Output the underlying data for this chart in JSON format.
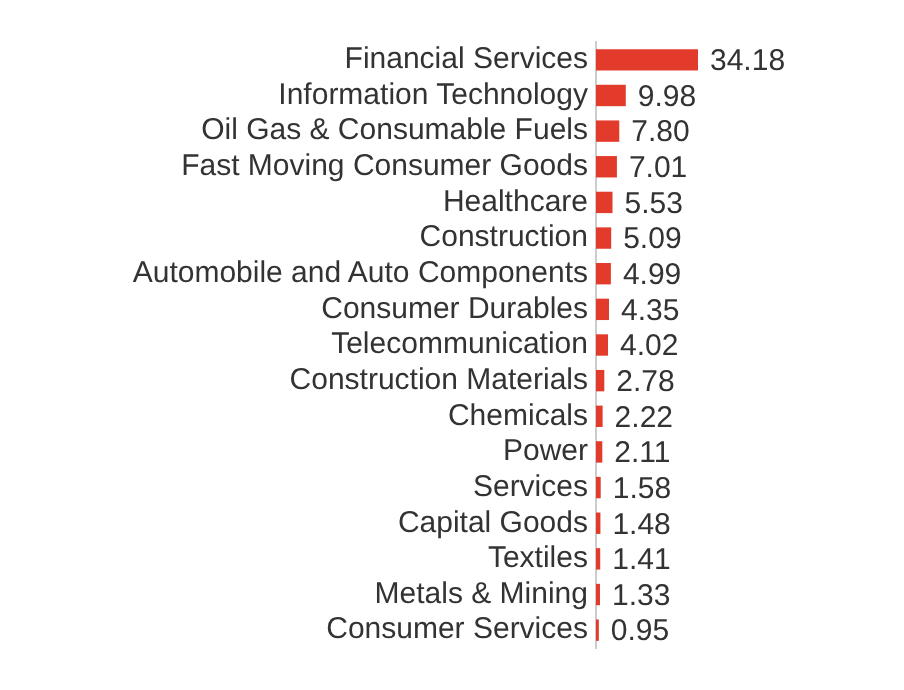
{
  "chart_data": {
    "type": "bar",
    "orientation": "horizontal",
    "categories": [
      "Financial Services",
      "Information Technology",
      "Oil Gas & Consumable Fuels",
      "Fast Moving Consumer Goods",
      "Healthcare",
      "Construction",
      "Automobile and Auto Components",
      "Consumer Durables",
      "Telecommunication",
      "Construction Materials",
      "Chemicals",
      "Power",
      "Services",
      "Capital Goods",
      "Textiles",
      "Metals & Mining",
      "Consumer Services"
    ],
    "values": [
      34.18,
      9.98,
      7.8,
      7.01,
      5.53,
      5.09,
      4.99,
      4.35,
      4.02,
      2.78,
      2.22,
      2.11,
      1.58,
      1.48,
      1.41,
      1.33,
      0.95
    ],
    "value_labels": [
      "34.18",
      "9.98",
      "7.80",
      "7.01",
      "5.53",
      "5.09",
      "4.99",
      "4.35",
      "4.02",
      "2.78",
      "2.22",
      "2.11",
      "1.58",
      "1.48",
      "1.41",
      "1.33",
      "0.95"
    ],
    "color": "#e23b2b",
    "grid": false,
    "legend": false
  }
}
